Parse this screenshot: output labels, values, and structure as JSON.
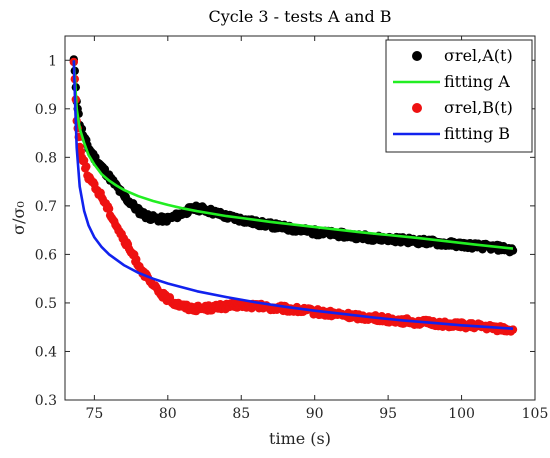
{
  "chart_data": {
    "type": "scatter",
    "title": "Cycle 3 - tests A and B",
    "xlabel": "time (s)",
    "ylabel": "σ/σ₀",
    "xlim": [
      73,
      105
    ],
    "ylim": [
      0.3,
      1.05
    ],
    "xticks": [
      75,
      80,
      85,
      90,
      95,
      100,
      105
    ],
    "yticks": [
      0.3,
      0.4,
      0.5,
      0.6,
      0.7,
      0.8,
      0.9,
      1.0
    ],
    "xtick_labels": [
      "75",
      "80",
      "85",
      "90",
      "95",
      "100",
      "105"
    ],
    "ytick_labels": [
      "0.3",
      "0.4",
      "0.5",
      "0.6",
      "0.7",
      "0.8",
      "0.9",
      "1"
    ],
    "grid": false,
    "legend_position": "top-right",
    "series": [
      {
        "name": "σrel,A(t)",
        "kind": "scatter",
        "color": "#000000",
        "x": [
          73.6,
          73.8,
          74.0,
          74.3,
          74.6,
          75.0,
          75.5,
          76.0,
          76.5,
          77.0,
          77.5,
          78.0,
          78.5,
          79.0,
          79.5,
          80.0,
          80.5,
          81.0,
          81.5,
          82.0,
          82.5,
          83.0,
          83.5,
          84.0,
          85.0,
          86.0,
          87.0,
          88.0,
          89.0,
          90.0,
          91.0,
          92.0,
          93.0,
          94.0,
          95.0,
          96.0,
          97.0,
          98.0,
          99.0,
          100.0,
          101.0,
          102.0,
          103.0,
          103.5
        ],
        "y": [
          1.0,
          0.92,
          0.87,
          0.84,
          0.82,
          0.8,
          0.78,
          0.76,
          0.74,
          0.72,
          0.705,
          0.69,
          0.68,
          0.675,
          0.672,
          0.673,
          0.678,
          0.685,
          0.692,
          0.695,
          0.693,
          0.688,
          0.683,
          0.678,
          0.672,
          0.665,
          0.66,
          0.655,
          0.65,
          0.646,
          0.643,
          0.64,
          0.637,
          0.634,
          0.632,
          0.63,
          0.627,
          0.625,
          0.622,
          0.62,
          0.617,
          0.615,
          0.612,
          0.608
        ]
      },
      {
        "name": "fitting A",
        "kind": "line",
        "color": "#22ee22",
        "x": [
          73.6,
          73.8,
          74.0,
          74.3,
          74.6,
          75.0,
          75.5,
          76.0,
          76.5,
          77.0,
          78.0,
          79.0,
          80.0,
          81.0,
          82.0,
          83.0,
          84.0,
          85.0,
          87.0,
          89.0,
          91.0,
          93.0,
          95.0,
          97.0,
          99.0,
          101.0,
          103.5
        ],
        "y": [
          1.0,
          0.9,
          0.86,
          0.83,
          0.805,
          0.785,
          0.765,
          0.752,
          0.742,
          0.733,
          0.72,
          0.71,
          0.702,
          0.695,
          0.689,
          0.684,
          0.679,
          0.675,
          0.667,
          0.66,
          0.653,
          0.646,
          0.64,
          0.634,
          0.627,
          0.62,
          0.612
        ]
      },
      {
        "name": "σrel,B(t)",
        "kind": "scatter",
        "color": "#ee1111",
        "x": [
          73.6,
          73.8,
          74.0,
          74.3,
          74.6,
          75.0,
          75.5,
          76.0,
          76.5,
          77.0,
          77.5,
          78.0,
          78.5,
          79.0,
          79.5,
          80.0,
          80.5,
          81.0,
          81.5,
          82.0,
          83.0,
          84.0,
          85.0,
          86.0,
          87.0,
          88.0,
          89.0,
          90.0,
          91.0,
          92.0,
          93.0,
          94.0,
          95.0,
          96.0,
          97.0,
          98.0,
          99.0,
          100.0,
          101.0,
          102.0,
          103.0,
          103.5
        ],
        "y": [
          1.0,
          0.88,
          0.82,
          0.79,
          0.76,
          0.74,
          0.72,
          0.69,
          0.66,
          0.63,
          0.605,
          0.58,
          0.555,
          0.535,
          0.52,
          0.508,
          0.5,
          0.494,
          0.49,
          0.489,
          0.49,
          0.493,
          0.496,
          0.493,
          0.49,
          0.488,
          0.485,
          0.482,
          0.478,
          0.475,
          0.472,
          0.469,
          0.466,
          0.463,
          0.46,
          0.458,
          0.456,
          0.454,
          0.452,
          0.449,
          0.446,
          0.445
        ]
      },
      {
        "name": "fitting B",
        "kind": "line",
        "color": "#1122ee",
        "x": [
          73.6,
          73.7,
          73.8,
          74.0,
          74.3,
          74.6,
          75.0,
          75.5,
          76.0,
          77.0,
          78.0,
          79.0,
          80.0,
          82.0,
          84.0,
          86.0,
          88.0,
          90.0,
          92.0,
          94.0,
          96.0,
          98.0,
          100.0,
          102.0,
          103.5
        ],
        "y": [
          1.0,
          0.9,
          0.82,
          0.74,
          0.69,
          0.66,
          0.635,
          0.615,
          0.6,
          0.578,
          0.562,
          0.55,
          0.54,
          0.524,
          0.512,
          0.501,
          0.492,
          0.484,
          0.477,
          0.47,
          0.464,
          0.459,
          0.454,
          0.45,
          0.447
        ]
      }
    ]
  }
}
